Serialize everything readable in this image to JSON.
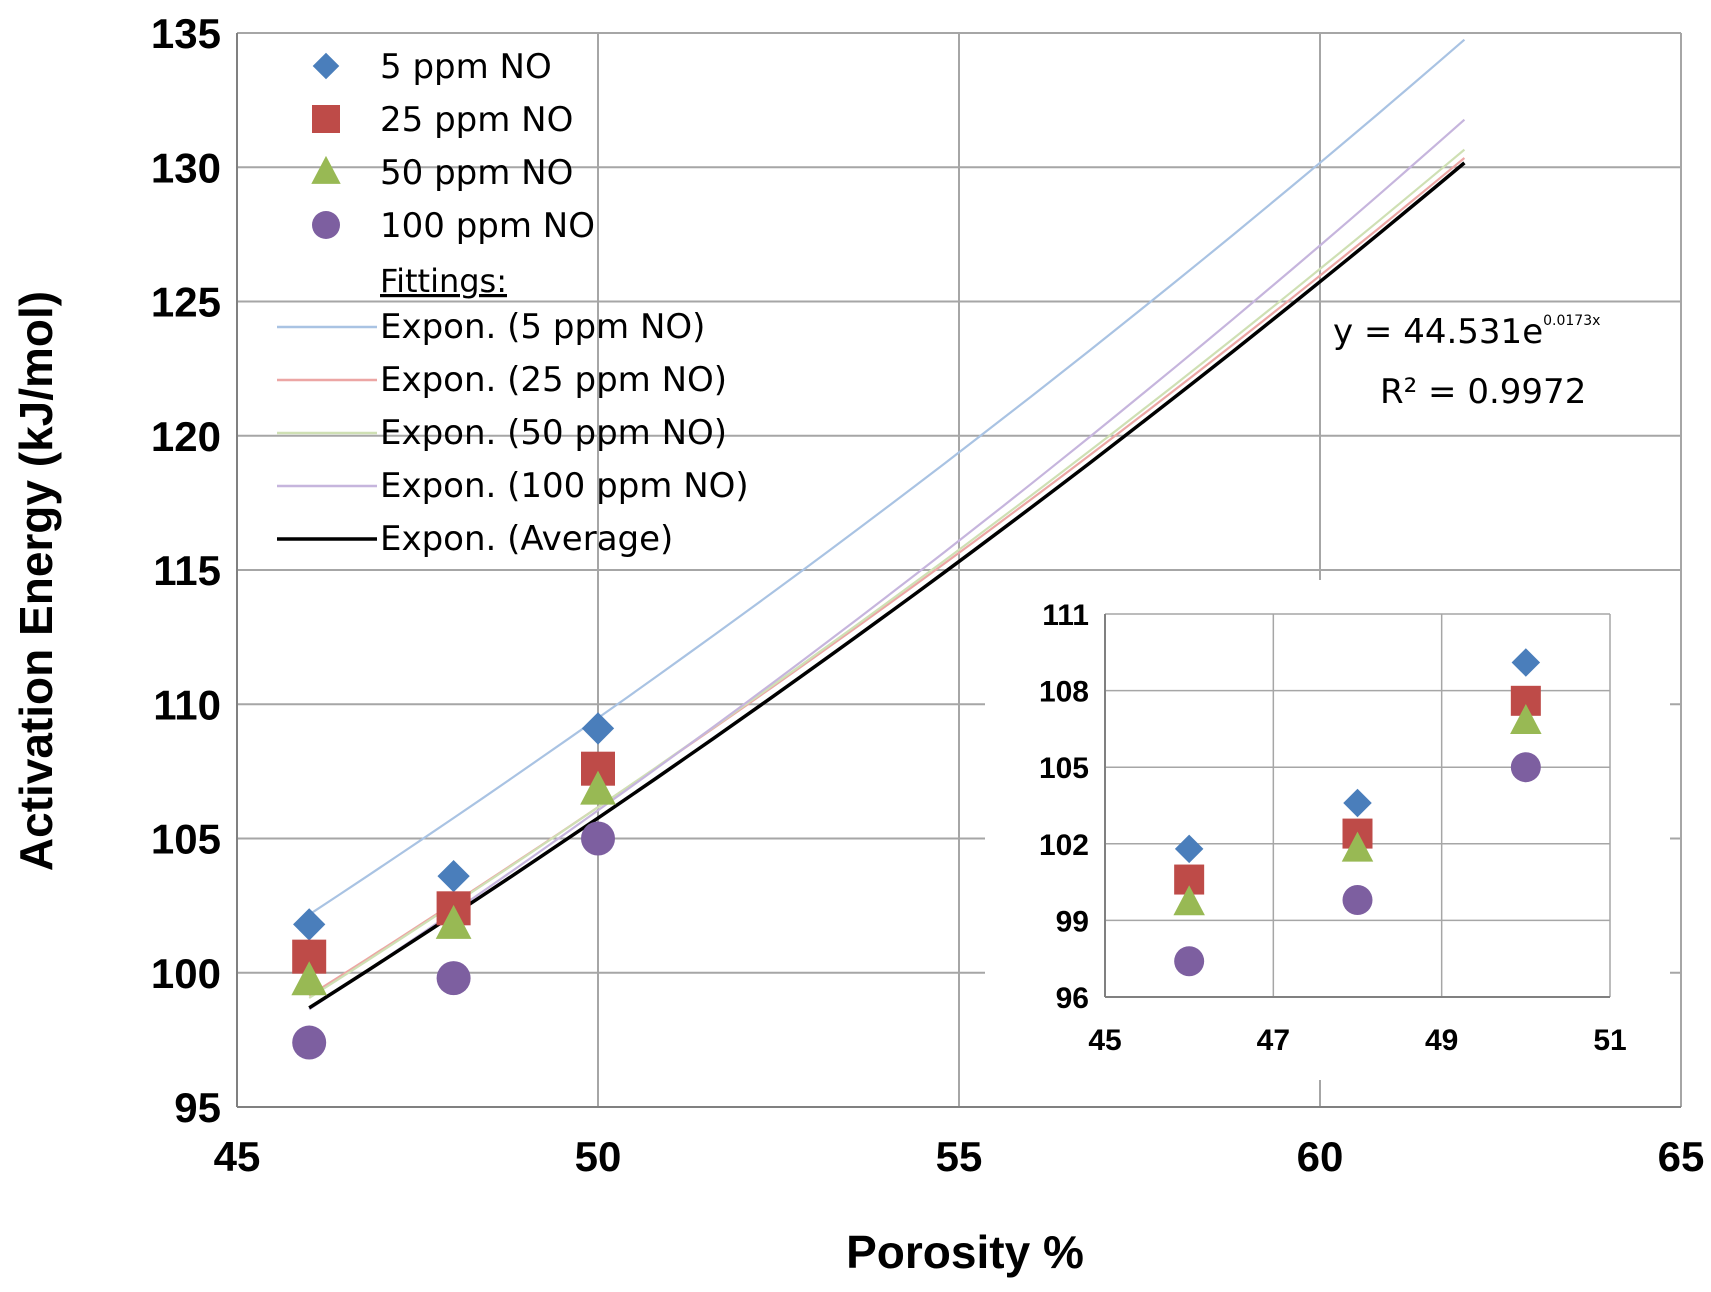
{
  "chart_data": {
    "type": "scatter",
    "title": "",
    "xlabel": "Porosity %",
    "ylabel": "Activation Energy (kJ/mol)",
    "xlim": [
      45,
      65
    ],
    "ylim": [
      95,
      135
    ],
    "xticks": [
      45,
      50,
      55,
      60,
      65
    ],
    "yticks": [
      95,
      100,
      105,
      110,
      115,
      120,
      125,
      130,
      135
    ],
    "grid": true,
    "legend_position": "top-left",
    "legend_heading": "Fittings:",
    "series": [
      {
        "name": "5 ppm NO",
        "marker": "diamond",
        "color": "#4a7ebb",
        "x": [
          46,
          48,
          50
        ],
        "y": [
          101.8,
          103.6,
          109.1
        ]
      },
      {
        "name": "25 ppm NO",
        "marker": "square",
        "color": "#be4b48",
        "x": [
          46,
          48,
          50
        ],
        "y": [
          100.6,
          102.4,
          107.6
        ]
      },
      {
        "name": "50 ppm NO",
        "marker": "triangle",
        "color": "#98b954",
        "x": [
          46,
          48,
          50
        ],
        "y": [
          99.7,
          101.8,
          106.8
        ]
      },
      {
        "name": "100 ppm NO",
        "marker": "circle",
        "color": "#7d5fa0",
        "x": [
          46,
          48,
          50
        ],
        "y": [
          97.4,
          99.8,
          105.0
        ]
      }
    ],
    "fits": [
      {
        "name": "Expon. (5 ppm NO)",
        "color": "#a9c3e3",
        "x": [
          46,
          62
        ],
        "a": 46.1,
        "b": 0.0173
      },
      {
        "name": "Expon. (25 ppm NO)",
        "color": "#eca6a4",
        "x": [
          46,
          62
        ],
        "a": 45.15,
        "b": 0.0171
      },
      {
        "name": "Expon. (50 ppm NO)",
        "color": "#cfe0b4",
        "x": [
          46,
          62
        ],
        "a": 44.7,
        "b": 0.0173
      },
      {
        "name": "Expon. (100 ppm NO)",
        "color": "#c6b5dd",
        "x": [
          46,
          62
        ],
        "a": 42.9,
        "b": 0.0181
      },
      {
        "name": "Expon. (Average)",
        "color": "#000000",
        "x": [
          46,
          62
        ],
        "a": 44.531,
        "b": 0.0173
      }
    ],
    "annotation": {
      "equation_prefix": "y = 44.531e",
      "equation_exponent": "0.0173x",
      "r2": "R² = 0.9972"
    },
    "inset": {
      "xlim": [
        45,
        51
      ],
      "ylim": [
        96,
        111
      ],
      "xticks": [
        45,
        47,
        49,
        51
      ],
      "yticks": [
        96,
        99,
        102,
        105,
        108,
        111
      ],
      "grid": true,
      "series_x": [
        46,
        48,
        50
      ]
    }
  }
}
